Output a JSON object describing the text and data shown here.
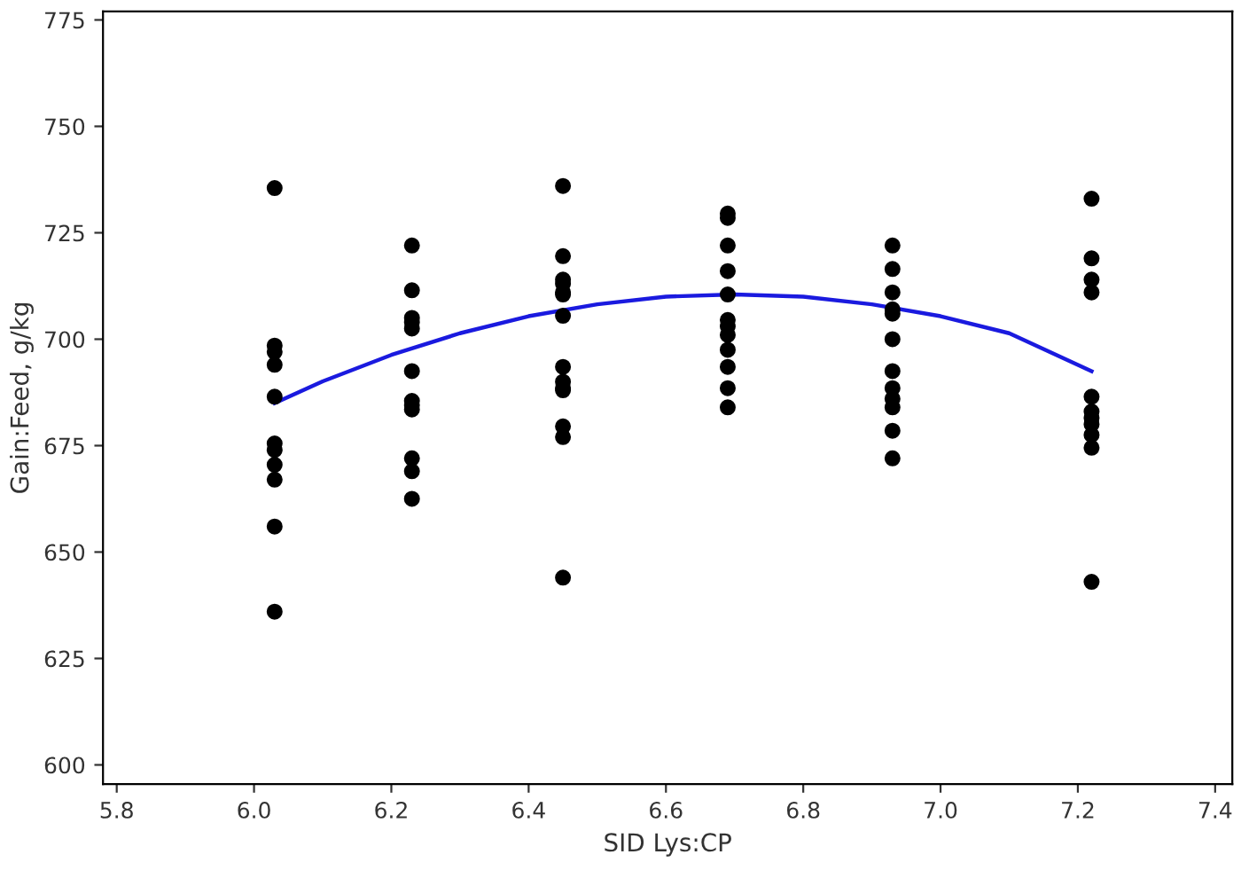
{
  "chart_data": {
    "type": "scatter",
    "xlabel": "SID Lys:CP",
    "ylabel": "Gain:Feed, g/kg",
    "xlim": [
      5.78,
      7.425
    ],
    "ylim": [
      595.5,
      777
    ],
    "xticks": [
      {
        "value": 5.8,
        "label": "5.8"
      },
      {
        "value": 6.0,
        "label": "6.0"
      },
      {
        "value": 6.2,
        "label": "6.2"
      },
      {
        "value": 6.4,
        "label": "6.4"
      },
      {
        "value": 6.6,
        "label": "6.6"
      },
      {
        "value": 6.8,
        "label": "6.8"
      },
      {
        "value": 7.0,
        "label": "7.0"
      },
      {
        "value": 7.2,
        "label": "7.2"
      },
      {
        "value": 7.4,
        "label": "7.4"
      }
    ],
    "yticks": [
      600,
      625,
      650,
      675,
      700,
      725,
      750,
      775
    ],
    "grid": false,
    "legend": false,
    "series": [
      {
        "color": "#000000",
        "marker": "circle",
        "x": [
          6.03,
          6.03,
          6.03,
          6.03,
          6.03,
          6.03,
          6.03,
          6.03,
          6.03,
          6.03,
          6.03,
          6.23,
          6.23,
          6.23,
          6.23,
          6.23,
          6.23,
          6.23,
          6.23,
          6.23,
          6.23,
          6.23,
          6.23,
          6.45,
          6.45,
          6.45,
          6.45,
          6.45,
          6.45,
          6.45,
          6.45,
          6.45,
          6.45,
          6.45,
          6.45,
          6.45,
          6.45,
          6.69,
          6.69,
          6.69,
          6.69,
          6.69,
          6.69,
          6.69,
          6.69,
          6.69,
          6.69,
          6.69,
          6.69,
          6.93,
          6.93,
          6.93,
          6.93,
          6.93,
          6.93,
          6.93,
          6.93,
          6.93,
          6.93,
          6.93,
          6.93,
          7.22,
          7.22,
          7.22,
          7.22,
          7.22,
          7.22,
          7.22,
          7.22,
          7.22,
          7.22,
          7.22
        ],
        "values": [
          735.5,
          698.5,
          697,
          694,
          686.5,
          675.5,
          674,
          670.5,
          667,
          656,
          636,
          722,
          711.5,
          705,
          704,
          702.5,
          692.5,
          685.5,
          684.5,
          683.5,
          672,
          669,
          662.5,
          736,
          719.5,
          714,
          713,
          711,
          710.5,
          705.5,
          693.5,
          690,
          688.5,
          688,
          679.5,
          677,
          644,
          729.5,
          728.5,
          722,
          716,
          710.5,
          704.5,
          703,
          701,
          697.5,
          693.5,
          688.5,
          684,
          722,
          716.5,
          711,
          707,
          706,
          700,
          692.5,
          688.5,
          686,
          684,
          678.5,
          672,
          733,
          719,
          714,
          711,
          686.5,
          683,
          681.5,
          680,
          677.5,
          674.5,
          643
        ]
      },
      {
        "type": "line",
        "color": "#1a1adf",
        "marker": "none",
        "line_style": "solid",
        "x": [
          6.03,
          6.1,
          6.2,
          6.3,
          6.4,
          6.5,
          6.6,
          6.7,
          6.8,
          6.9,
          7.0,
          7.1,
          7.22
        ],
        "values": [
          685,
          690.1,
          696.3,
          701.4,
          705.4,
          708.2,
          710,
          710.5,
          710,
          708.2,
          705.4,
          701.4,
          692.5
        ]
      }
    ]
  }
}
